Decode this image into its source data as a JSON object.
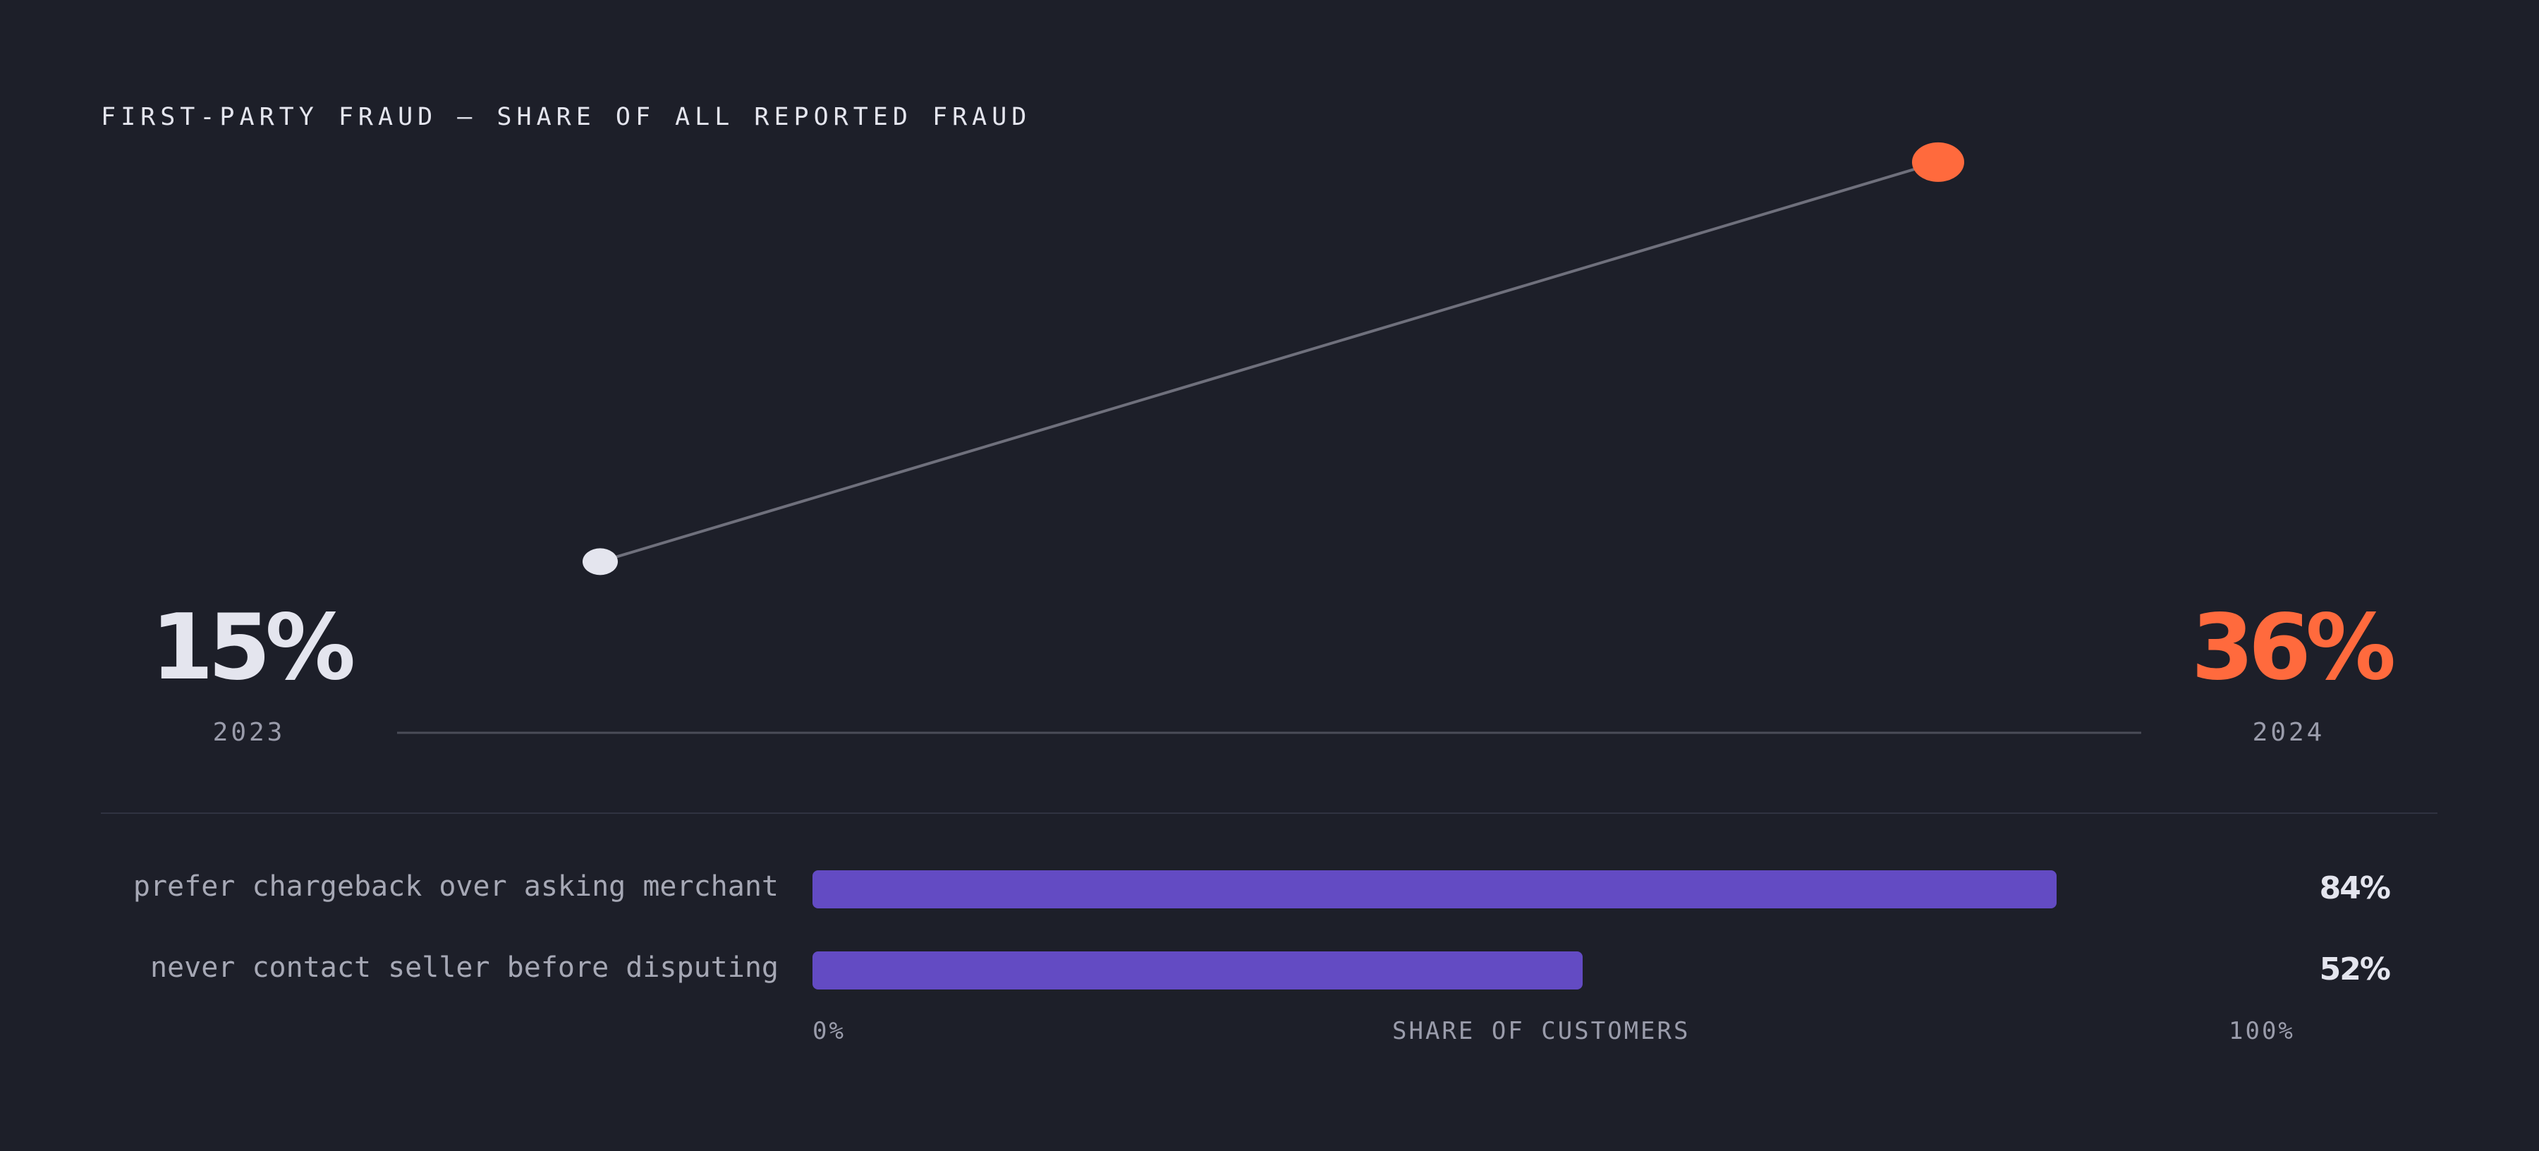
{
  "title": "FIRST-PARTY FRAUD — SHARE OF ALL REPORTED FRAUD",
  "colors": {
    "background": "#1d1f29",
    "start": "#e4e5ee",
    "end": "#ff6a3d",
    "bar": "#634bc3",
    "line": "#6f707c"
  },
  "chart_data": [
    {
      "type": "line",
      "title": "FIRST-PARTY FRAUD — SHARE OF ALL REPORTED FRAUD",
      "x": [
        "2023",
        "2024"
      ],
      "series": [
        {
          "values": [
            15,
            36
          ]
        }
      ],
      "start_label": "15%",
      "end_label": "36%",
      "start_year": "2023",
      "end_year": "2024",
      "ylim": [
        0,
        40
      ]
    },
    {
      "type": "bar",
      "orientation": "horizontal",
      "categories": [
        "prefer chargeback over asking merchant",
        "never contact seller before disputing"
      ],
      "values": [
        84,
        52
      ],
      "value_labels": [
        "84%",
        "52%"
      ],
      "xlabel": "SHARE OF CUSTOMERS",
      "xlim": [
        0,
        100
      ],
      "tick_min": "0%",
      "tick_max": "100%"
    }
  ]
}
